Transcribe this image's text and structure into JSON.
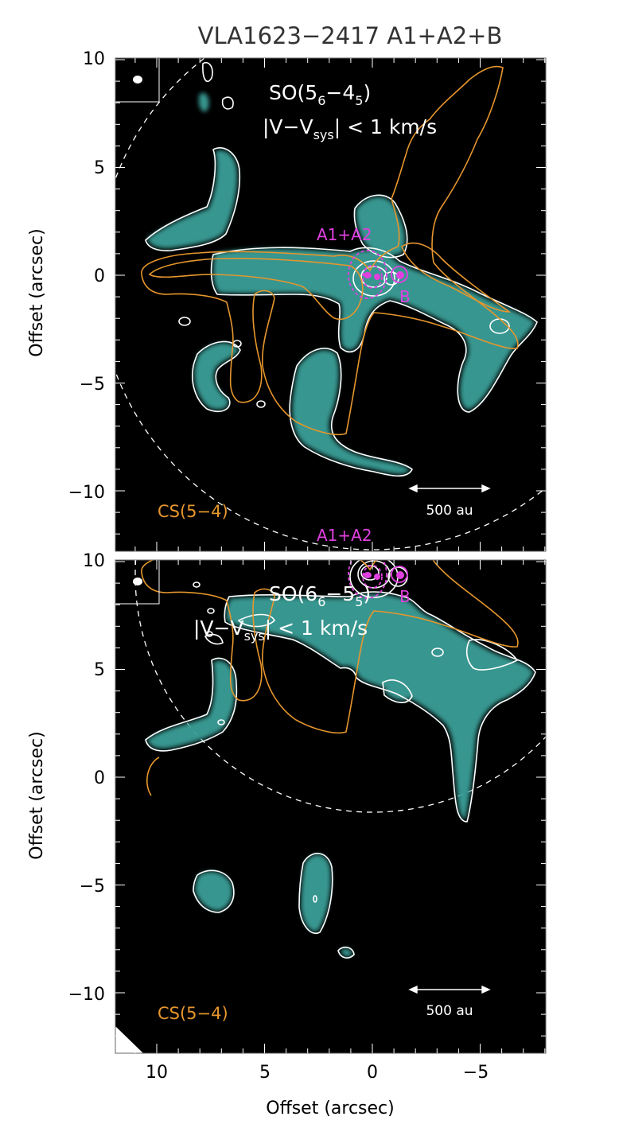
{
  "figure": {
    "title": "VLA1623−2417 A1+A2+B",
    "xlabel": "Offset (arcsec)",
    "ylabel": "Offset (arcsec)",
    "x_ticks": [
      "10",
      "5",
      "0",
      "−5"
    ],
    "y_ticks": [
      "10",
      "5",
      "0",
      "−5",
      "−10"
    ],
    "colors": {
      "background": "#000000",
      "emission": "#3a9f98",
      "white_contour": "#ffffff",
      "cs_contour": "#e6962d",
      "source_contour": "#e040e0",
      "cs_label": "#e6962d",
      "source_label": "#e040e0"
    }
  },
  "panels": [
    {
      "id": "top",
      "molecule": "SO(5",
      "line_sub1": "6",
      "line_mid": "−4",
      "line_sub2": "5",
      "line_close": ")",
      "velocity_pre": "|V−V",
      "velocity_sub": "sys",
      "velocity_post": "| < 1 km/s",
      "source_a": "A1+A2",
      "source_b": "B",
      "tracer": "CS(5−4)",
      "scale_bar": "500 au",
      "beam_icon": "beam-ellipse-icon"
    },
    {
      "id": "bottom",
      "molecule": "SO(6",
      "line_sub1": "6",
      "line_mid": "−5",
      "line_sub2": "5",
      "line_close": ")",
      "velocity_pre": "|V−V",
      "velocity_sub": "sys",
      "velocity_post": "| < 1 km/s",
      "source_a": "A1+A2",
      "source_b": "B",
      "tracer": "CS(5−4)",
      "scale_bar": "500 au",
      "beam_icon": "beam-ellipse-icon"
    }
  ]
}
